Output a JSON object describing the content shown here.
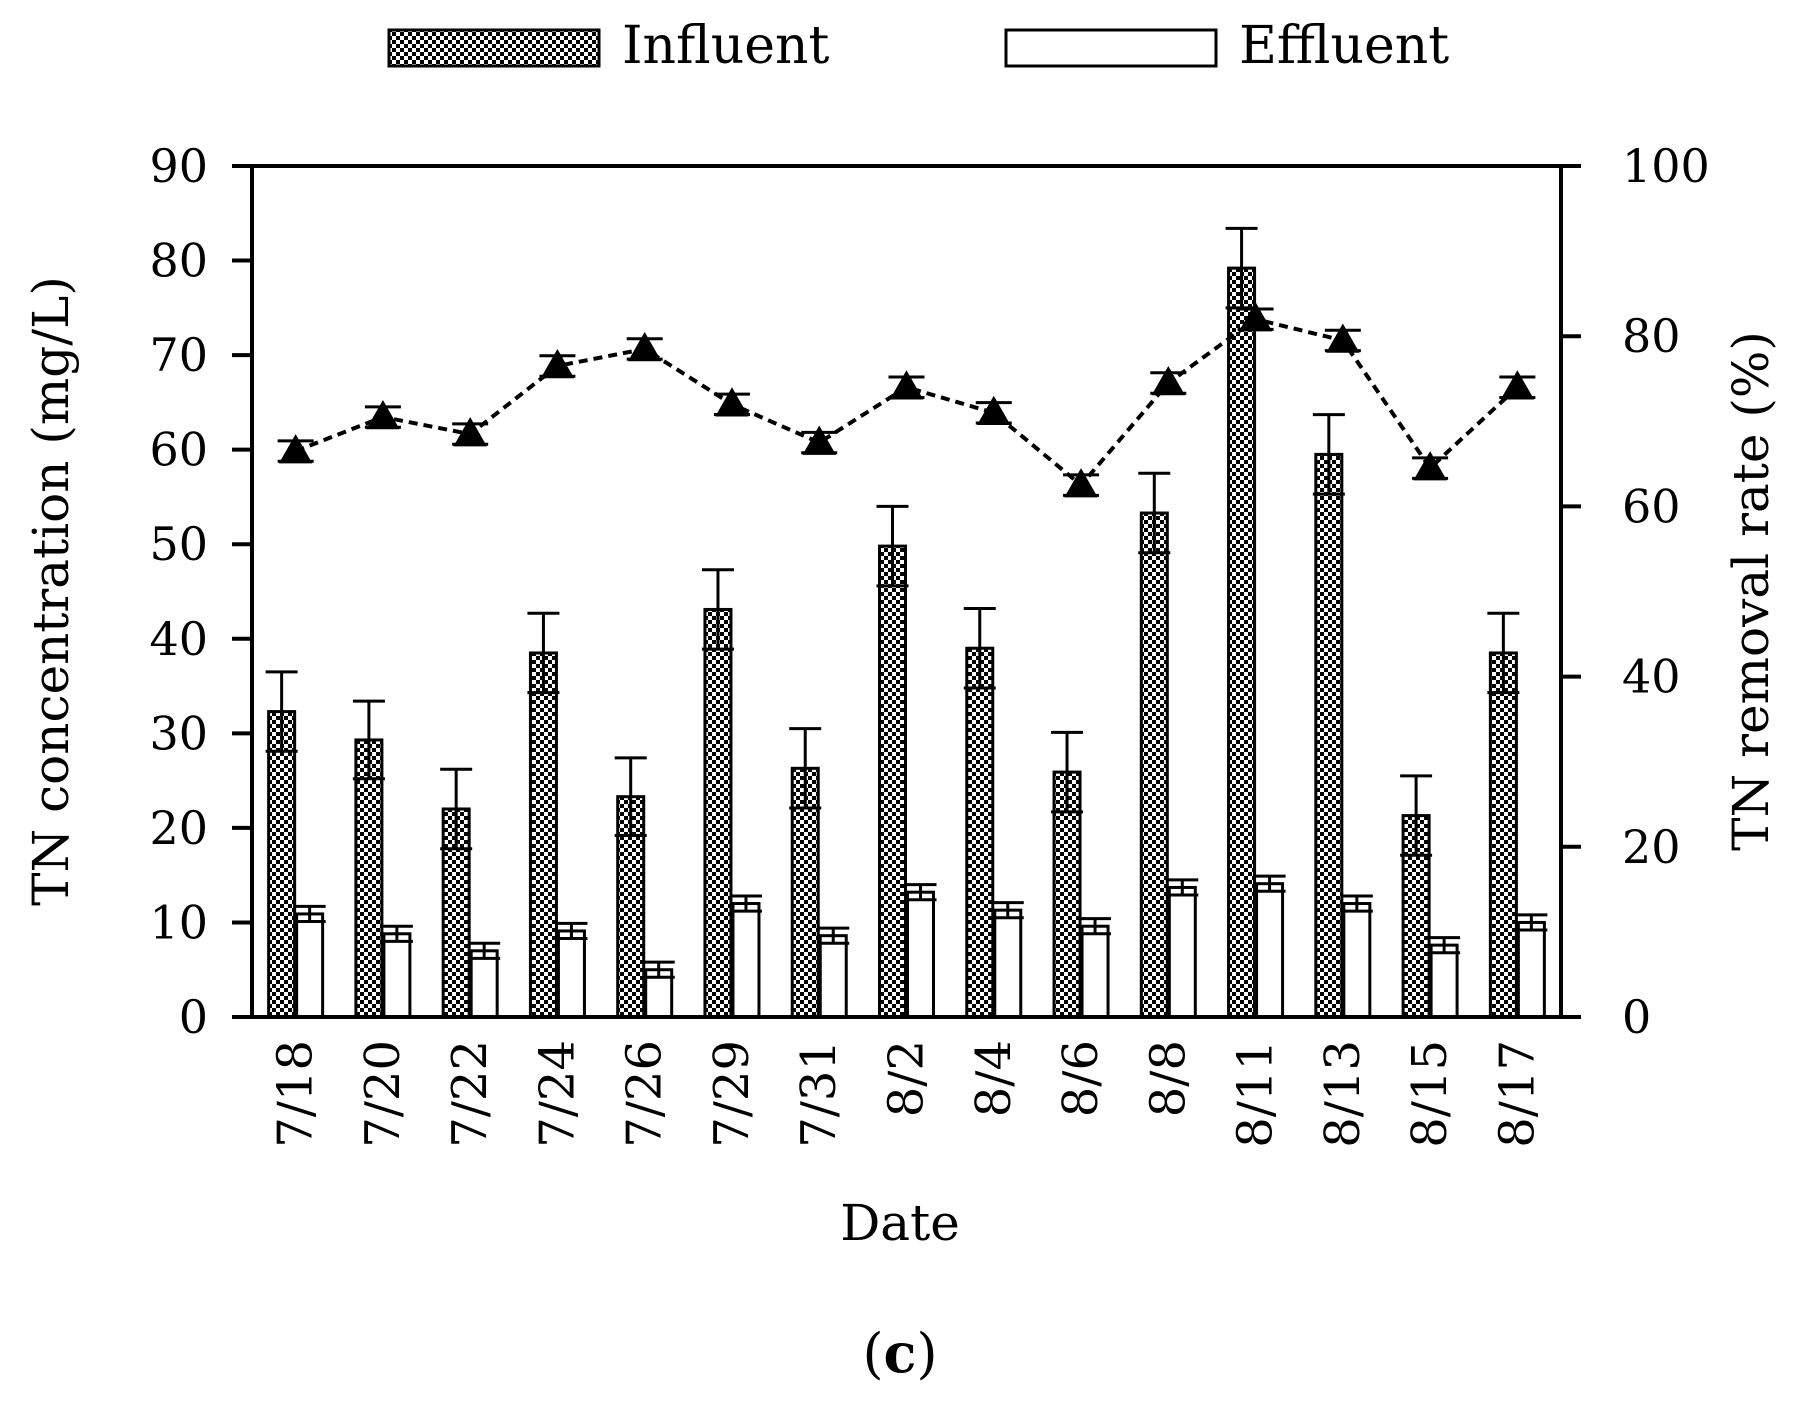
{
  "chart_data": {
    "type": "bar",
    "panel_label": "c",
    "xlabel": "Date",
    "ylabel_left": "TN concentration (mg/L)",
    "ylabel_right": "TN removal rate (%)",
    "ylim_left": [
      0,
      90
    ],
    "yticks_left": [
      0,
      10,
      20,
      30,
      40,
      50,
      60,
      70,
      80,
      90
    ],
    "ylim_right": [
      0,
      100
    ],
    "yticks_right": [
      0,
      20,
      40,
      60,
      80,
      100
    ],
    "legend_position": "top-center",
    "categories": [
      "7/18",
      "7/20",
      "7/22",
      "7/24",
      "7/26",
      "7/29",
      "7/31",
      "8/2",
      "8/4",
      "8/6",
      "8/8",
      "8/11",
      "8/13",
      "8/15",
      "8/17"
    ],
    "series": [
      {
        "name": "Influent",
        "type": "bar",
        "axis": "left",
        "pattern": "checkered",
        "values": [
          32.3,
          29.3,
          22.0,
          38.5,
          23.3,
          43.1,
          26.3,
          49.8,
          39.0,
          25.9,
          53.3,
          79.2,
          59.5,
          21.3,
          38.5
        ],
        "errors": [
          4.2,
          4.1,
          4.2,
          4.2,
          4.1,
          4.2,
          4.2,
          4.2,
          4.2,
          4.2,
          4.2,
          4.2,
          4.2,
          4.2,
          4.2
        ]
      },
      {
        "name": "Effluent",
        "type": "bar",
        "axis": "left",
        "pattern": "white",
        "values": [
          10.9,
          8.8,
          7.0,
          9.1,
          5.0,
          12.0,
          8.6,
          13.2,
          11.3,
          9.6,
          13.7,
          14.1,
          12.0,
          7.6,
          10.0
        ],
        "errors": [
          0.8,
          0.8,
          0.8,
          0.8,
          0.8,
          0.8,
          0.8,
          0.8,
          0.8,
          0.8,
          0.8,
          0.8,
          0.8,
          0.8,
          0.8
        ]
      },
      {
        "name": "TN removal rate",
        "type": "line",
        "axis": "right",
        "marker": "triangle",
        "line_style": "dashed",
        "values": [
          66.5,
          70.5,
          68.5,
          76.5,
          78.5,
          72.0,
          67.5,
          74.0,
          71.0,
          62.5,
          74.5,
          82.0,
          79.5,
          64.5,
          74.0
        ],
        "errors": [
          1.2,
          1.2,
          1.2,
          1.2,
          1.2,
          1.2,
          1.2,
          1.2,
          1.2,
          1.2,
          1.2,
          1.2,
          1.2,
          1.2,
          1.2
        ]
      }
    ]
  }
}
